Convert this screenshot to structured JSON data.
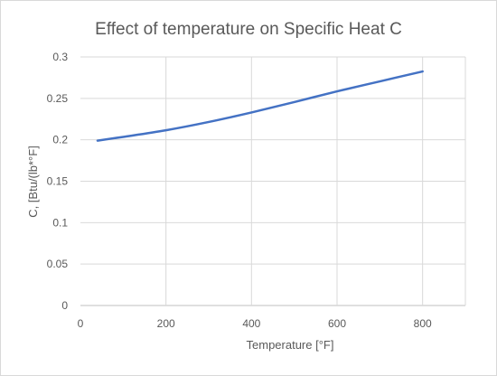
{
  "chart_data": {
    "type": "line",
    "title": "Effect of temperature on Specific Heat C",
    "xlabel": "Temperature [°F]",
    "ylabel": "C, [Btu/(lb*°F]",
    "xlim": [
      0,
      900
    ],
    "ylim": [
      0,
      0.3
    ],
    "xticks": [
      0,
      200,
      400,
      600,
      800
    ],
    "xtick_labels": [
      "0",
      "200",
      "400",
      "600",
      "800"
    ],
    "yticks": [
      0,
      0.05,
      0.1,
      0.15,
      0.2,
      0.25,
      0.3
    ],
    "ytick_labels": [
      "0",
      "0.05",
      "0.1",
      "0.15",
      "0.2",
      "0.25",
      "0.3"
    ],
    "grid": true,
    "series": [
      {
        "color": "#4472c4",
        "x": [
          40,
          100,
          200,
          300,
          400,
          500,
          600,
          700,
          800
        ],
        "y": [
          0.199,
          0.2035,
          0.2115,
          0.2215,
          0.233,
          0.2455,
          0.2585,
          0.2705,
          0.2825
        ]
      }
    ]
  }
}
